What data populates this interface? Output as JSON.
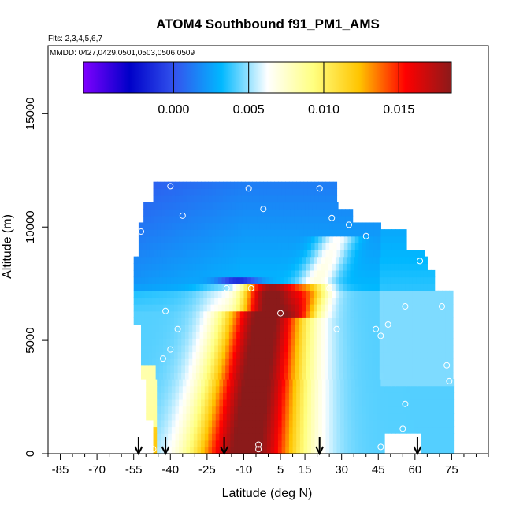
{
  "chart_data": {
    "type": "heatmap",
    "title": "ATOM4 Southbound f91_PM1_AMS",
    "subtitle_flights": "Flts: 2,3,4,5,6,7",
    "subtitle_dates": "MMDD: 0427,0429,0501,0503,0506,0509",
    "xlabel": "Latitude (deg N)",
    "ylabel": "Altitude (m)",
    "xlim": [
      -90,
      90
    ],
    "ylim": [
      0,
      18000
    ],
    "x_ticks": [
      -85,
      -70,
      -55,
      -40,
      -25,
      -10,
      5,
      15,
      30,
      45,
      60,
      75
    ],
    "x_tick_labels": [
      "-85",
      "-70",
      "-55",
      "-40",
      "-25",
      "-10",
      "5",
      "15",
      "30",
      "45",
      "60",
      "75"
    ],
    "y_ticks": [
      0,
      5000,
      10000,
      15000
    ],
    "y_tick_labels": [
      "0",
      "5000",
      "10000",
      "15000"
    ],
    "colorbar": {
      "range": [
        -0.006,
        0.0185
      ],
      "ticks": [
        0.0,
        0.005,
        0.01,
        0.015
      ],
      "tick_labels": [
        "0.000",
        "0.005",
        "0.010",
        "0.015"
      ],
      "colors": [
        "#7f00ff",
        "#0000c8",
        "#3355ee",
        "#00b8ff",
        "#ffffff",
        "#ffff80",
        "#ffc400",
        "#ff0000",
        "#8b1a1a"
      ]
    },
    "arrow_latitudes": [
      -53,
      -42,
      -18,
      21,
      61
    ],
    "sample_points": [
      {
        "lat": -40,
        "alt": 11800
      },
      {
        "lat": -8,
        "alt": 11700
      },
      {
        "lat": 21,
        "alt": 11700
      },
      {
        "lat": -2,
        "alt": 10800
      },
      {
        "lat": -35,
        "alt": 10500
      },
      {
        "lat": 26,
        "alt": 10400
      },
      {
        "lat": 33,
        "alt": 10100
      },
      {
        "lat": -52,
        "alt": 9800
      },
      {
        "lat": 40,
        "alt": 9600
      },
      {
        "lat": 62,
        "alt": 8500
      },
      {
        "lat": -17,
        "alt": 7300
      },
      {
        "lat": -7,
        "alt": 7300
      },
      {
        "lat": 25,
        "alt": 7300
      },
      {
        "lat": 56,
        "alt": 6500
      },
      {
        "lat": -42,
        "alt": 6300
      },
      {
        "lat": 5,
        "alt": 6200
      },
      {
        "lat": 71,
        "alt": 6500
      },
      {
        "lat": 49,
        "alt": 5700
      },
      {
        "lat": -37,
        "alt": 5500
      },
      {
        "lat": 28,
        "alt": 5500
      },
      {
        "lat": 44,
        "alt": 5500
      },
      {
        "lat": 46,
        "alt": 5200
      },
      {
        "lat": -40,
        "alt": 4600
      },
      {
        "lat": -43,
        "alt": 4200
      },
      {
        "lat": 73,
        "alt": 3900
      },
      {
        "lat": 74,
        "alt": 3200
      },
      {
        "lat": 56,
        "alt": 2200
      },
      {
        "lat": 55,
        "alt": 1100
      },
      {
        "lat": -4,
        "alt": 400
      },
      {
        "lat": -4,
        "alt": 200
      },
      {
        "lat": 46,
        "alt": 300
      },
      {
        "lat": -47,
        "alt": 200
      }
    ]
  }
}
